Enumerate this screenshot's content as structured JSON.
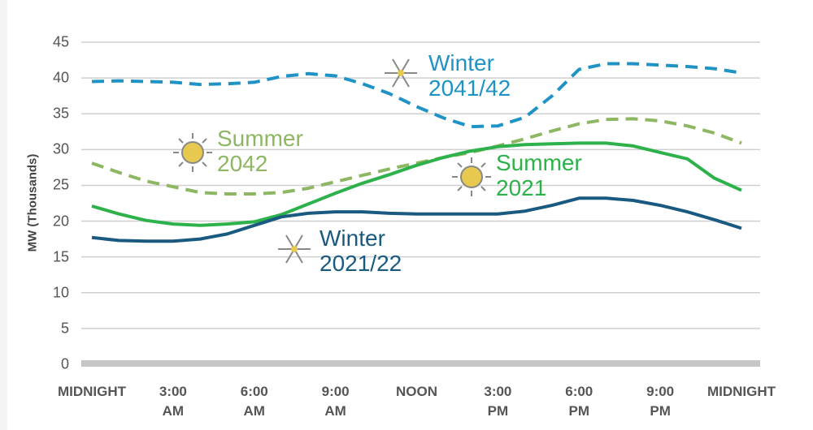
{
  "chart_data": {
    "type": "line",
    "y_label": "MW (Thousands)",
    "x": [
      0,
      1,
      2,
      3,
      4,
      5,
      6,
      7,
      8,
      9,
      10,
      11,
      12,
      13,
      14,
      15,
      16,
      17,
      18,
      19,
      20,
      21,
      22,
      23,
      24
    ],
    "xlim": [
      0,
      24
    ],
    "xticks": [
      {
        "value": 0,
        "label": "MIDNIGHT"
      },
      {
        "value": 3,
        "label": "3:00 AM"
      },
      {
        "value": 6,
        "label": "6:00 AM"
      },
      {
        "value": 9,
        "label": "9:00 AM"
      },
      {
        "value": 12,
        "label": "NOON"
      },
      {
        "value": 15,
        "label": "3:00 PM"
      },
      {
        "value": 18,
        "label": "6:00 PM"
      },
      {
        "value": 21,
        "label": "9:00 PM"
      },
      {
        "value": 24,
        "label": "MIDNIGHT"
      }
    ],
    "ylim": [
      0,
      45
    ],
    "yticks": [
      0,
      5,
      10,
      15,
      20,
      25,
      30,
      35,
      40,
      45
    ],
    "grid": true,
    "series": [
      {
        "name": "Winter 2041/42",
        "color": "#1f93c6",
        "dashed": true,
        "values": [
          39.5,
          39.6,
          39.5,
          39.4,
          39.1,
          39.2,
          39.4,
          40.2,
          40.6,
          40.3,
          39.2,
          37.8,
          36.0,
          34.4,
          33.2,
          33.3,
          34.5,
          37.5,
          41.2,
          42.0,
          42.0,
          41.8,
          41.6,
          41.3,
          40.7
        ]
      },
      {
        "name": "Summer 2042",
        "color": "#8db762",
        "dashed": true,
        "values": [
          28.1,
          26.8,
          25.6,
          24.8,
          24.0,
          23.8,
          23.8,
          24.0,
          24.6,
          25.5,
          26.4,
          27.3,
          28.1,
          28.9,
          29.6,
          30.5,
          31.5,
          32.6,
          33.6,
          34.2,
          34.3,
          34.0,
          33.3,
          32.3,
          30.9
        ]
      },
      {
        "name": "Summer 2021",
        "color": "#2db14b",
        "dashed": false,
        "values": [
          22.1,
          21.0,
          20.1,
          19.6,
          19.4,
          19.6,
          19.9,
          20.9,
          22.4,
          23.9,
          25.3,
          26.5,
          27.8,
          28.9,
          29.8,
          30.4,
          30.7,
          30.8,
          30.9,
          30.9,
          30.5,
          29.6,
          28.7,
          26.0,
          24.3
        ]
      },
      {
        "name": "Winter 2021/22",
        "color": "#1b5a80",
        "dashed": false,
        "values": [
          17.7,
          17.3,
          17.2,
          17.2,
          17.5,
          18.2,
          19.4,
          20.6,
          21.1,
          21.3,
          21.3,
          21.1,
          21.0,
          21.0,
          21.0,
          21.0,
          21.4,
          22.2,
          23.2,
          23.2,
          22.9,
          22.2,
          21.3,
          20.2,
          19.0
        ]
      }
    ]
  }
}
